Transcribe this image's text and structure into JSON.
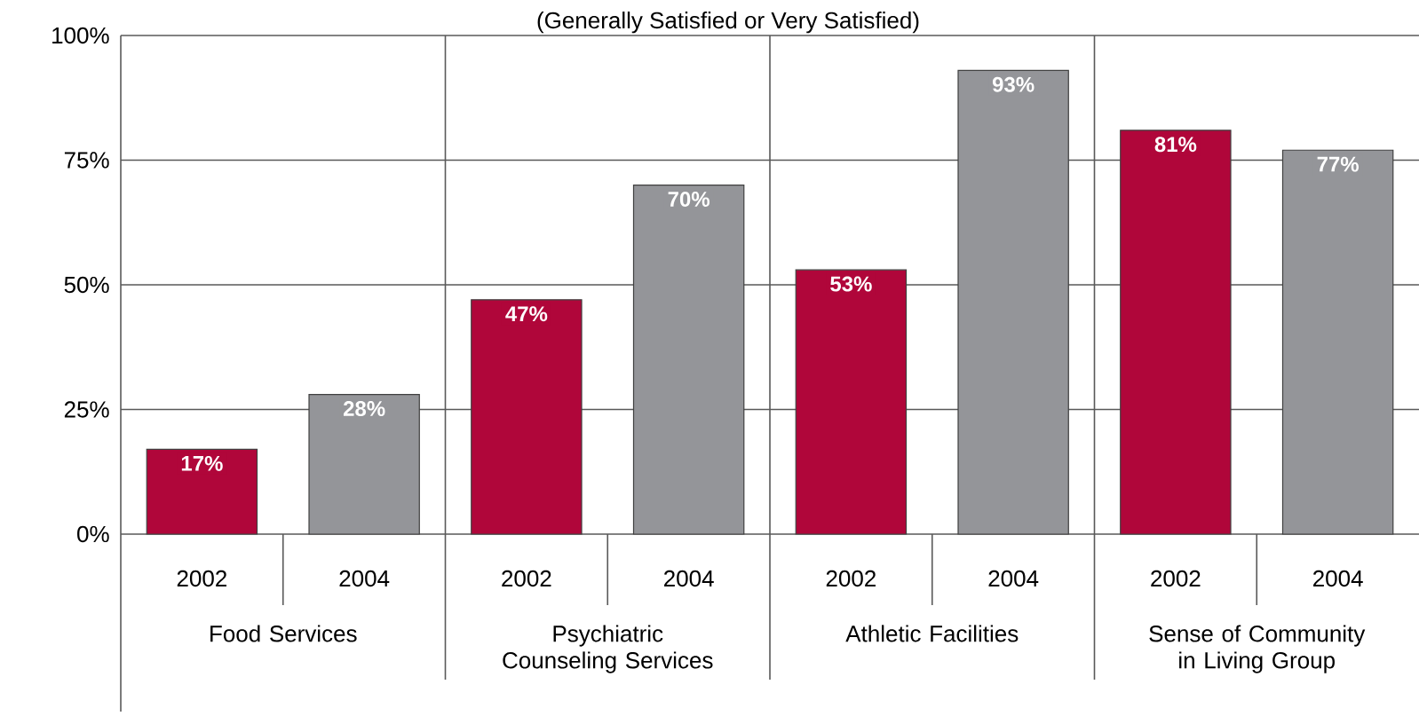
{
  "chart_data": {
    "type": "bar",
    "title": "(Generally Satisfied or Very Satisfied)",
    "categories": [
      "2002",
      "2004",
      "2002",
      "2004",
      "2002",
      "2004",
      "2002",
      "2004"
    ],
    "values": [
      17,
      28,
      47,
      70,
      53,
      93,
      81,
      77
    ],
    "colors": [
      "#b0063a",
      "#949599",
      "#b0063a",
      "#949599",
      "#b0063a",
      "#949599",
      "#b0063a",
      "#949599"
    ],
    "value_labels": [
      "17%",
      "28%",
      "47%",
      "70%",
      "53%",
      "93%",
      "81%",
      "77%"
    ],
    "ylim": [
      0,
      100
    ],
    "yticks": [
      {
        "value": 0,
        "label": "0%"
      },
      {
        "value": 25,
        "label": "25%"
      },
      {
        "value": 50,
        "label": "50%"
      },
      {
        "value": 75,
        "label": "75%"
      },
      {
        "value": 100,
        "label": "100%"
      }
    ],
    "grid": "y",
    "annotations": [
      "Food Services",
      "Psychiatric Counseling Services",
      "Athletic Facilities",
      "Sense of Community in Living Group"
    ]
  }
}
